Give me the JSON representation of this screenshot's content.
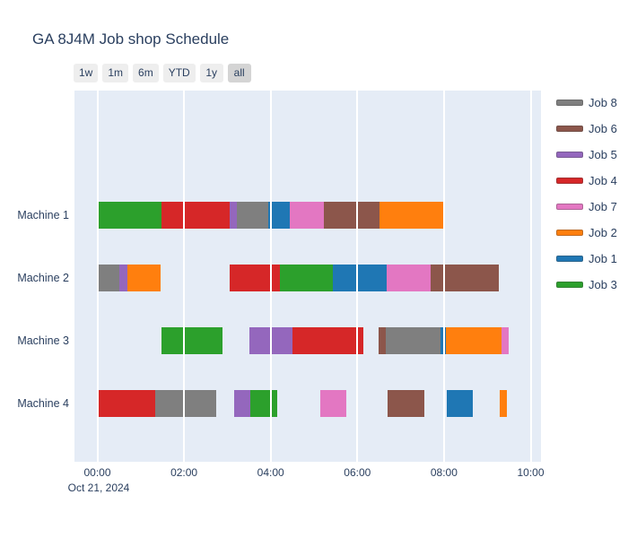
{
  "title": "GA 8J4M Job shop Schedule",
  "range_selector": {
    "buttons": [
      {
        "label": "1w",
        "active": false
      },
      {
        "label": "1m",
        "active": false
      },
      {
        "label": "6m",
        "active": false
      },
      {
        "label": "YTD",
        "active": false
      },
      {
        "label": "1y",
        "active": false
      },
      {
        "label": "all",
        "active": true
      }
    ]
  },
  "x_axis": {
    "ticks": [
      "00:00",
      "02:00",
      "04:00",
      "06:00",
      "08:00",
      "10:00"
    ],
    "date_label": "Oct 21, 2024"
  },
  "y_axis": {
    "labels": [
      "Machine 1",
      "Machine 2",
      "Machine 3",
      "Machine 4"
    ]
  },
  "legend": {
    "items": [
      {
        "label": "Job 8",
        "color": "#7f7f7f"
      },
      {
        "label": "Job 6",
        "color": "#8c564b"
      },
      {
        "label": "Job 5",
        "color": "#9467bd"
      },
      {
        "label": "Job 4",
        "color": "#d62728"
      },
      {
        "label": "Job 7",
        "color": "#e377c2"
      },
      {
        "label": "Job 2",
        "color": "#ff7f0e"
      },
      {
        "label": "Job 1",
        "color": "#1f77b4"
      },
      {
        "label": "Job 3",
        "color": "#2ca02c"
      }
    ]
  },
  "colors": {
    "plot_background": "#e5ecf6",
    "paper_background": "#ffffff",
    "text": "#2a3f5f",
    "gridline": "#ffffff",
    "button_background": "#eeeeee",
    "button_active_background": "#d4d4d4"
  },
  "chart_data": {
    "type": "bar",
    "subtype": "gantt-timeline",
    "title": "GA 8J4M Job shop Schedule",
    "date": "Oct 21, 2024",
    "x_unit": "hours",
    "x_tick_hours": [
      0,
      2,
      4,
      6,
      8,
      10
    ],
    "x_range_hours": [
      -0.53,
      10.24
    ],
    "grid": true,
    "legend_position": "right",
    "job_colors": {
      "Job 1": "#1f77b4",
      "Job 2": "#ff7f0e",
      "Job 3": "#2ca02c",
      "Job 4": "#d62728",
      "Job 5": "#9467bd",
      "Job 6": "#8c564b",
      "Job 7": "#e377c2",
      "Job 8": "#7f7f7f"
    },
    "legend_order": [
      "Job 8",
      "Job 6",
      "Job 5",
      "Job 4",
      "Job 7",
      "Job 2",
      "Job 1",
      "Job 3"
    ],
    "machines": [
      {
        "name": "Machine 1",
        "segments": [
          {
            "job": "Job 3",
            "start": 0.0,
            "end": 1.48
          },
          {
            "job": "Job 4",
            "start": 1.48,
            "end": 3.05
          },
          {
            "job": "Job 5",
            "start": 3.05,
            "end": 3.22
          },
          {
            "job": "Job 8",
            "start": 3.22,
            "end": 3.95
          },
          {
            "job": "Job 1",
            "start": 3.95,
            "end": 4.45
          },
          {
            "job": "Job 7",
            "start": 4.45,
            "end": 5.22
          },
          {
            "job": "Job 6",
            "start": 5.22,
            "end": 6.52
          },
          {
            "job": "Job 2",
            "start": 6.52,
            "end": 8.0
          }
        ]
      },
      {
        "name": "Machine 2",
        "segments": [
          {
            "job": "Job 8",
            "start": 0.0,
            "end": 0.51
          },
          {
            "job": "Job 5",
            "start": 0.51,
            "end": 0.69
          },
          {
            "job": "Job 2",
            "start": 0.69,
            "end": 1.46
          },
          {
            "job": "Job 4",
            "start": 3.05,
            "end": 4.21
          },
          {
            "job": "Job 3",
            "start": 4.21,
            "end": 5.44
          },
          {
            "job": "Job 1",
            "start": 5.44,
            "end": 6.68
          },
          {
            "job": "Job 7",
            "start": 6.68,
            "end": 7.69
          },
          {
            "job": "Job 6",
            "start": 7.69,
            "end": 9.27
          }
        ]
      },
      {
        "name": "Machine 3",
        "segments": [
          {
            "job": "Job 3",
            "start": 1.48,
            "end": 2.89
          },
          {
            "job": "Job 5",
            "start": 3.51,
            "end": 4.51
          },
          {
            "job": "Job 4",
            "start": 4.51,
            "end": 6.14
          },
          {
            "job": "Job 6",
            "start": 6.5,
            "end": 6.66
          },
          {
            "job": "Job 8",
            "start": 6.66,
            "end": 7.91
          },
          {
            "job": "Job 1",
            "start": 7.91,
            "end": 8.05
          },
          {
            "job": "Job 2",
            "start": 8.05,
            "end": 9.33
          },
          {
            "job": "Job 7",
            "start": 9.33,
            "end": 9.5
          }
        ]
      },
      {
        "name": "Machine 4",
        "segments": [
          {
            "job": "Job 4",
            "start": 0.0,
            "end": 1.33
          },
          {
            "job": "Job 8",
            "start": 1.33,
            "end": 2.74
          },
          {
            "job": "Job 5",
            "start": 3.16,
            "end": 3.52
          },
          {
            "job": "Job 3",
            "start": 3.52,
            "end": 4.16
          },
          {
            "job": "Job 7",
            "start": 5.14,
            "end": 5.74
          },
          {
            "job": "Job 6",
            "start": 6.7,
            "end": 7.55
          },
          {
            "job": "Job 1",
            "start": 8.07,
            "end": 8.66
          },
          {
            "job": "Job 2",
            "start": 9.29,
            "end": 9.45
          }
        ]
      }
    ]
  }
}
